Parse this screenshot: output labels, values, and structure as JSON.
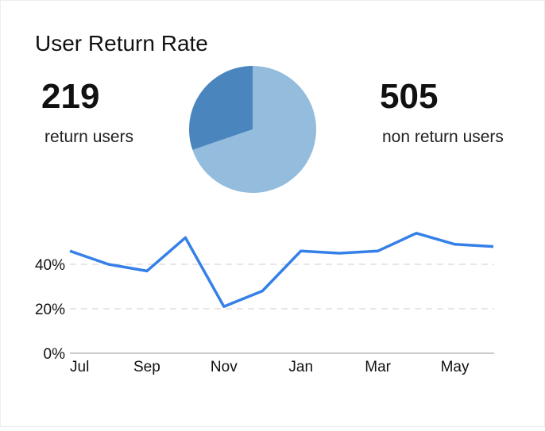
{
  "title": "User Return Rate",
  "chart_data": [
    {
      "type": "pie",
      "categories": [
        "return users",
        "non return users"
      ],
      "values": [
        219,
        505
      ],
      "colors": [
        "#4a86bd",
        "#94bcdc"
      ]
    },
    {
      "type": "line",
      "categories": [
        "Jul",
        null,
        "Sep",
        null,
        "Nov",
        null,
        "Jan",
        null,
        "Mar",
        null,
        "May",
        null
      ],
      "values": [
        46,
        40,
        37,
        52,
        21,
        28,
        46,
        45,
        46,
        54,
        49,
        48
      ],
      "color": "#3580e8",
      "ylim": [
        0,
        60
      ],
      "yticks": [
        {
          "value": 0,
          "label": "0%"
        },
        {
          "value": 20,
          "label": "20%"
        },
        {
          "value": 40,
          "label": "40%"
        }
      ],
      "grid": true
    }
  ]
}
